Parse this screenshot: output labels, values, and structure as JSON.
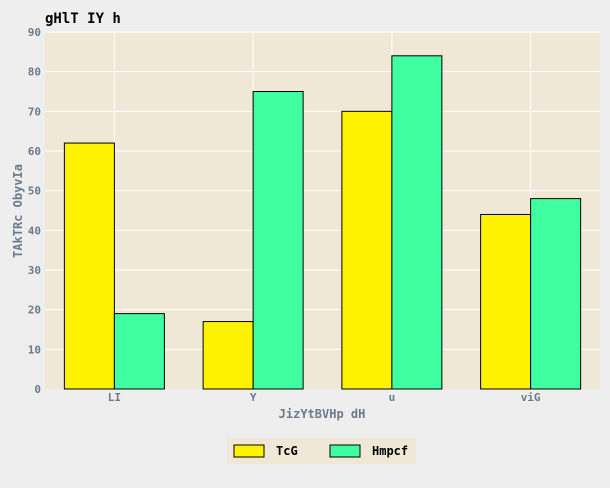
{
  "chart_data": {
    "type": "bar",
    "title": "gHlT  IY h",
    "xlabel": "JizYtBVHp dH",
    "ylabel": "TAkTRc ObyvIa",
    "categories": [
      "LI",
      "Y",
      "u",
      "viG"
    ],
    "series": [
      {
        "name": "TcG",
        "values": [
          62,
          17,
          70,
          44
        ],
        "color": "#fff200"
      },
      {
        "name": "Hmpcf",
        "values": [
          19,
          75,
          84,
          48
        ],
        "color": "#40ffa0"
      }
    ],
    "ylim": [
      0,
      90
    ],
    "yticks": [
      0,
      10,
      20,
      30,
      40,
      50,
      60,
      70,
      80,
      90
    ],
    "grid": true,
    "legend_position": "bottom-center",
    "plot_background": "#f0e8d6",
    "page_background": "#eeeeee"
  }
}
